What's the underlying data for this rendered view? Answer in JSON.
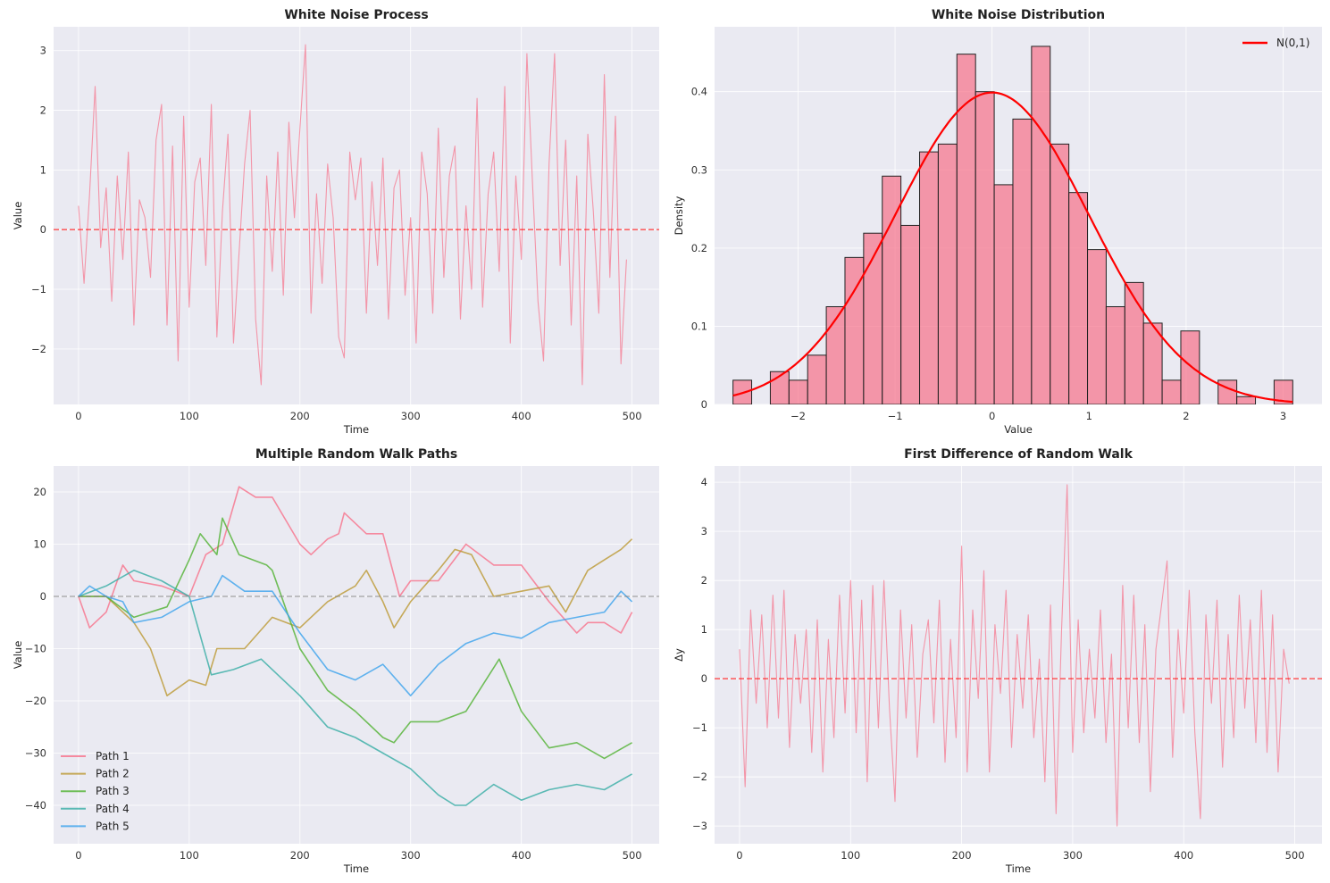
{
  "chart_data": [
    {
      "type": "line",
      "title": "White Noise Process",
      "xlabel": "Time",
      "ylabel": "Value",
      "xlim": [
        -22.5,
        524.5
      ],
      "ylim": [
        -2.93,
        3.4
      ],
      "xticks": [
        0,
        100,
        200,
        300,
        400,
        500
      ],
      "yticks": [
        -2,
        -1,
        0,
        1,
        2,
        3
      ],
      "grid": true,
      "x_step": 5,
      "series": [
        {
          "color": "#f77189",
          "values": [
            0.4,
            -0.9,
            0.6,
            2.4,
            -0.3,
            0.7,
            -1.2,
            0.9,
            -0.5,
            1.3,
            -1.6,
            0.5,
            0.2,
            -0.8,
            1.5,
            2.1,
            -1.6,
            1.4,
            -2.2,
            1.9,
            -1.3,
            0.8,
            1.2,
            -0.6,
            2.1,
            -1.8,
            0.3,
            1.6,
            -1.9,
            -0.4,
            1.1,
            2.0,
            -1.5,
            -2.6,
            0.9,
            -0.7,
            1.3,
            -1.1,
            1.8,
            0.2,
            1.7,
            3.1,
            -1.4,
            0.6,
            -0.9,
            1.1,
            0.2,
            -1.8,
            -2.15,
            1.3,
            0.5,
            1.2,
            -1.4,
            0.8,
            -0.6,
            1.2,
            -1.5,
            0.7,
            1.0,
            -1.1,
            0.2,
            -1.9,
            1.3,
            0.6,
            -1.4,
            1.7,
            -0.8,
            0.9,
            1.4,
            -1.5,
            0.4,
            -1.0,
            2.2,
            -1.3,
            0.6,
            1.3,
            -0.7,
            2.4,
            -1.9,
            0.9,
            -0.5,
            2.95,
            0.8,
            -1.2,
            -2.2,
            1.1,
            2.95,
            -0.6,
            1.5,
            -1.6,
            0.9,
            -2.6,
            1.6,
            0.3,
            -1.4,
            2.6,
            -0.8,
            1.9,
            -2.25,
            -0.5
          ]
        }
      ],
      "hline": {
        "y": 0,
        "color": "#ff0000",
        "style": "dashed"
      }
    },
    {
      "type": "bar",
      "title": "White Noise Distribution",
      "xlabel": "Value",
      "ylabel": "Density",
      "xlim": [
        -2.86,
        3.4
      ],
      "ylim": [
        0,
        0.483
      ],
      "xticks": [
        -2,
        -1,
        0,
        1,
        2,
        3
      ],
      "yticks": [
        0.0,
        0.1,
        0.2,
        0.3,
        0.4
      ],
      "grid": true,
      "bin_start": -2.67,
      "bin_width": 0.1923,
      "values": [
        0.031,
        0,
        0.042,
        0.031,
        0.063,
        0.125,
        0.188,
        0.219,
        0.292,
        0.229,
        0.323,
        0.333,
        0.448,
        0.4,
        0.281,
        0.365,
        0.458,
        0.333,
        0.271,
        0.198,
        0.125,
        0.156,
        0.104,
        0.031,
        0.094,
        0,
        0.031,
        0.01,
        0,
        0.031
      ],
      "bar_color": "#f77189",
      "curve": {
        "name": "N(0,1)",
        "color": "#ff0000",
        "mean": 0,
        "sd": 1
      },
      "legend": "top-right"
    },
    {
      "type": "line",
      "title": "Multiple Random Walk Paths",
      "xlabel": "Time",
      "ylabel": "Value",
      "xlim": [
        -22.5,
        524.5
      ],
      "ylim": [
        -47.35,
        24.96
      ],
      "xticks": [
        0,
        100,
        200,
        300,
        400,
        500
      ],
      "yticks": [
        -40,
        -30,
        -20,
        -10,
        0,
        10,
        20
      ],
      "grid": true,
      "legend": "bottom-left",
      "series": [
        {
          "name": "Path 1",
          "color": "#f77189",
          "x": [
            0,
            10,
            25,
            40,
            50,
            75,
            100,
            115,
            130,
            145,
            160,
            175,
            200,
            210,
            225,
            235,
            240,
            260,
            275,
            290,
            300,
            325,
            350,
            375,
            400,
            425,
            450,
            460,
            475,
            490,
            500
          ],
          "values": [
            0,
            -6,
            -3,
            6,
            3,
            2,
            0,
            8,
            10,
            21,
            19,
            19,
            10,
            8,
            11,
            12,
            16,
            12,
            12,
            0,
            3,
            3,
            10,
            6,
            6,
            -1,
            -7,
            -5,
            -5,
            -7,
            -3
          ]
        },
        {
          "name": "Path 2",
          "color": "#bb9832",
          "x": [
            0,
            25,
            50,
            65,
            80,
            100,
            115,
            125,
            150,
            175,
            200,
            225,
            250,
            260,
            275,
            285,
            300,
            325,
            340,
            355,
            375,
            400,
            425,
            440,
            460,
            475,
            490,
            500
          ],
          "values": [
            0,
            0,
            -5,
            -10,
            -19,
            -16,
            -17,
            -10,
            -10,
            -4,
            -6,
            -1,
            2,
            5,
            -1,
            -6,
            -1,
            5,
            9,
            8,
            0,
            1,
            2,
            -3,
            5,
            7,
            9,
            11
          ]
        },
        {
          "name": "Path 3",
          "color": "#50b131",
          "x": [
            0,
            25,
            50,
            80,
            100,
            110,
            125,
            130,
            145,
            170,
            175,
            200,
            225,
            250,
            275,
            285,
            300,
            325,
            350,
            380,
            400,
            425,
            450,
            475,
            500
          ],
          "values": [
            0,
            0,
            -4,
            -2,
            7,
            12,
            8,
            15,
            8,
            6,
            5,
            -10,
            -18,
            -22,
            -27,
            -28,
            -24,
            -24,
            -22,
            -12,
            -22,
            -29,
            -28,
            -31,
            -28
          ]
        },
        {
          "name": "Path 4",
          "color": "#36ada4",
          "x": [
            0,
            25,
            50,
            75,
            100,
            120,
            140,
            165,
            180,
            200,
            225,
            250,
            275,
            300,
            325,
            340,
            350,
            375,
            400,
            425,
            450,
            475,
            500
          ],
          "values": [
            0,
            2,
            5,
            3,
            0,
            -15,
            -14,
            -12,
            -15,
            -19,
            -25,
            -27,
            -30,
            -33,
            -38,
            -40,
            -40,
            -36,
            -39,
            -37,
            -36,
            -37,
            -34
          ]
        },
        {
          "name": "Path 5",
          "color": "#3ba3ec",
          "x": [
            0,
            10,
            25,
            40,
            50,
            75,
            100,
            120,
            130,
            150,
            175,
            200,
            225,
            250,
            275,
            300,
            325,
            350,
            375,
            400,
            425,
            450,
            475,
            490,
            500
          ],
          "values": [
            0,
            2,
            0,
            -1,
            -5,
            -4,
            -1,
            0,
            4,
            1,
            1,
            -7,
            -14,
            -16,
            -13,
            -19,
            -13,
            -9,
            -7,
            -8,
            -5,
            -4,
            -3,
            1,
            -1
          ]
        }
      ],
      "hline": {
        "y": 0,
        "color": "#808080",
        "style": "dashed"
      }
    },
    {
      "type": "line",
      "title": "First Difference of Random Walk",
      "xlabel": "Time",
      "ylabel": "Δy",
      "xlim": [
        -22.5,
        524.5
      ],
      "ylim": [
        -3.36,
        4.33
      ],
      "xticks": [
        0,
        100,
        200,
        300,
        400,
        500
      ],
      "yticks": [
        -3,
        -2,
        -1,
        0,
        1,
        2,
        3,
        4
      ],
      "grid": true,
      "x_step": 5,
      "series": [
        {
          "color": "#f77189",
          "values": [
            0.6,
            -2.2,
            1.4,
            -0.5,
            1.3,
            -1.0,
            1.7,
            -0.8,
            1.8,
            -1.4,
            0.9,
            -0.5,
            1.0,
            -1.5,
            1.2,
            -1.9,
            0.8,
            -1.2,
            1.7,
            -0.7,
            2.0,
            -1.1,
            1.6,
            -2.1,
            1.9,
            -1.0,
            2.0,
            -0.6,
            -2.5,
            1.4,
            -0.8,
            1.1,
            -1.6,
            0.5,
            1.2,
            -0.9,
            1.6,
            -1.7,
            0.8,
            -1.2,
            2.7,
            -1.9,
            1.4,
            -0.4,
            2.2,
            -1.9,
            1.1,
            -0.3,
            1.8,
            -1.4,
            0.9,
            -0.6,
            1.3,
            -1.2,
            0.4,
            -2.1,
            1.5,
            -2.75,
            1.0,
            3.95,
            -1.5,
            1.2,
            -1.1,
            0.6,
            -0.8,
            1.4,
            -1.3,
            0.5,
            -3.0,
            1.9,
            -1.0,
            1.7,
            -1.3,
            1.1,
            -2.3,
            0.6,
            1.5,
            2.4,
            -1.6,
            1.0,
            -0.7,
            1.8,
            -1.1,
            -2.85,
            1.3,
            -0.5,
            1.6,
            -1.8,
            0.9,
            -1.2,
            1.7,
            -0.6,
            1.2,
            -1.3,
            1.8,
            -1.5,
            1.3,
            -1.9,
            0.6,
            -0.1
          ]
        }
      ],
      "hline": {
        "y": 0,
        "color": "#ff0000",
        "style": "dashed"
      }
    }
  ]
}
